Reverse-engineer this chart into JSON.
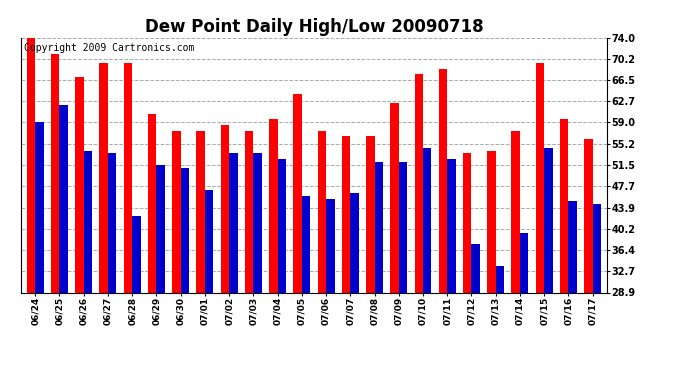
{
  "title": "Dew Point Daily High/Low 20090718",
  "copyright": "Copyright 2009 Cartronics.com",
  "dates": [
    "06/24",
    "06/25",
    "06/26",
    "06/27",
    "06/28",
    "06/29",
    "06/30",
    "07/01",
    "07/02",
    "07/03",
    "07/04",
    "07/05",
    "07/06",
    "07/07",
    "07/08",
    "07/09",
    "07/10",
    "07/11",
    "07/12",
    "07/13",
    "07/14",
    "07/15",
    "07/16",
    "07/17"
  ],
  "highs": [
    74.0,
    71.0,
    67.0,
    69.5,
    69.5,
    60.5,
    57.5,
    57.5,
    58.5,
    57.5,
    59.5,
    64.0,
    57.5,
    56.5,
    56.5,
    62.5,
    67.5,
    68.5,
    53.5,
    54.0,
    57.5,
    69.5,
    59.5,
    56.0
  ],
  "lows": [
    59.0,
    62.0,
    54.0,
    53.5,
    42.5,
    51.5,
    51.0,
    47.0,
    53.5,
    53.5,
    52.5,
    46.0,
    45.5,
    46.5,
    52.0,
    52.0,
    54.5,
    52.5,
    37.5,
    33.5,
    39.5,
    54.5,
    45.0,
    44.5
  ],
  "high_color": "#ff0000",
  "low_color": "#0000cc",
  "bg_color": "#ffffff",
  "grid_color": "#aaaaaa",
  "yticks": [
    28.9,
    32.7,
    36.4,
    40.2,
    43.9,
    47.7,
    51.5,
    55.2,
    59.0,
    62.7,
    66.5,
    70.2,
    74.0
  ],
  "ylim_min": 28.9,
  "ylim_max": 74.0,
  "title_fontsize": 12,
  "copyright_fontsize": 7,
  "bar_width": 0.35,
  "figwidth": 6.9,
  "figheight": 3.75,
  "dpi": 100
}
